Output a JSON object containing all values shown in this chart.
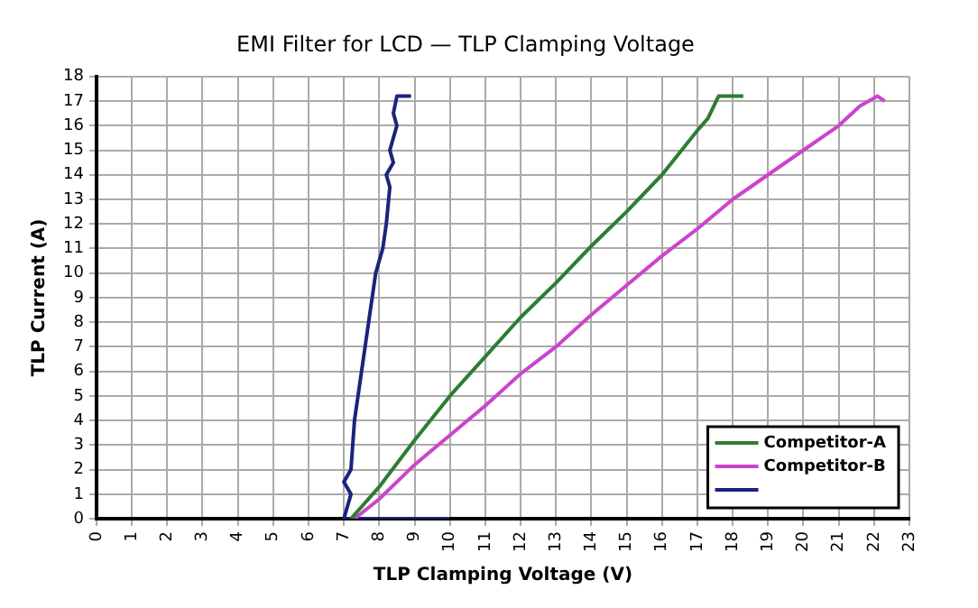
{
  "chart_data": {
    "type": "line",
    "title": "EMI Filter for LCD — TLP Clamping Voltage",
    "xlabel": "TLP Clamping Voltage (V)",
    "ylabel": "TLP Current (A)",
    "xlim": [
      0,
      23
    ],
    "xticks": [
      0,
      1,
      2,
      3,
      4,
      5,
      6,
      7,
      8,
      9,
      10,
      11,
      12,
      13,
      14,
      15,
      16,
      17,
      18,
      19,
      20,
      21,
      22,
      23
    ],
    "ylim": [
      0,
      18
    ],
    "yticks": [
      0,
      1,
      2,
      3,
      4,
      5,
      6,
      7,
      8,
      9,
      10,
      11,
      12,
      13,
      14,
      15,
      16,
      17,
      18
    ],
    "grid": true,
    "legend": "bottom right",
    "marker": "none",
    "line_style": "solid",
    "series": [
      {
        "name": "Competitor-A",
        "color": "#2e7d32",
        "x": [
          7.2,
          8,
          9,
          10,
          11,
          12,
          13,
          14,
          15,
          16,
          16.5,
          17,
          17.3,
          17.6,
          18.3
        ],
        "values": [
          0,
          1.3,
          3.2,
          5.0,
          6.6,
          8.2,
          9.6,
          11.1,
          12.5,
          14.0,
          14.9,
          15.8,
          16.3,
          17.2,
          17.2
        ]
      },
      {
        "name": "Competitor-B",
        "color": "#cc44cc",
        "x": [
          7.3,
          8,
          9,
          10,
          11,
          12,
          13,
          14,
          15,
          16,
          17,
          18,
          19,
          20,
          21,
          21.6,
          22.1,
          22.3
        ],
        "values": [
          0,
          0.8,
          2.2,
          3.4,
          4.6,
          5.9,
          7.0,
          8.3,
          9.5,
          10.7,
          11.8,
          13.0,
          14.0,
          15.0,
          16.0,
          16.8,
          17.2,
          17.0
        ]
      },
      {
        "color": "#1a237e",
        "x": [
          10,
          7,
          7.1,
          7.2,
          7.0,
          7.2,
          7.3,
          7.5,
          7.7,
          7.9,
          8.1,
          8.2,
          8.3,
          8.2,
          8.4,
          8.3,
          8.5,
          8.4,
          8.5,
          8.9
        ],
        "values": [
          0,
          0,
          0.5,
          1,
          1.5,
          2,
          4,
          6,
          8,
          10,
          11,
          12,
          13.5,
          14,
          14.5,
          15,
          16,
          16.5,
          17.2,
          17.2
        ]
      }
    ]
  }
}
